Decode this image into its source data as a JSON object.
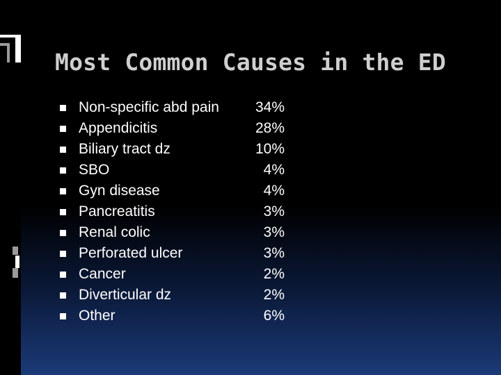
{
  "slide": {
    "title": "Most Common Causes in the ED"
  },
  "items": [
    {
      "label": "Non-specific abd pain",
      "value": "34%"
    },
    {
      "label": "Appendicitis",
      "value": "28%"
    },
    {
      "label": "Biliary tract dz",
      "value": "10%"
    },
    {
      "label": "SBO",
      "value": "4%"
    },
    {
      "label": "Gyn disease",
      "value": "4%"
    },
    {
      "label": "Pancreatitis",
      "value": "3%"
    },
    {
      "label": "Renal colic",
      "value": "3%"
    },
    {
      "label": "Perforated ulcer",
      "value": "3%"
    },
    {
      "label": "Cancer",
      "value": "2%"
    },
    {
      "label": "Diverticular dz",
      "value": "2%"
    },
    {
      "label": "Other",
      "value": "6%"
    }
  ],
  "colors": {
    "background": "#000000",
    "gradient_bottom": "#1b3a78",
    "title_text": "#cfcfcf",
    "body_text": "#ffffff"
  }
}
